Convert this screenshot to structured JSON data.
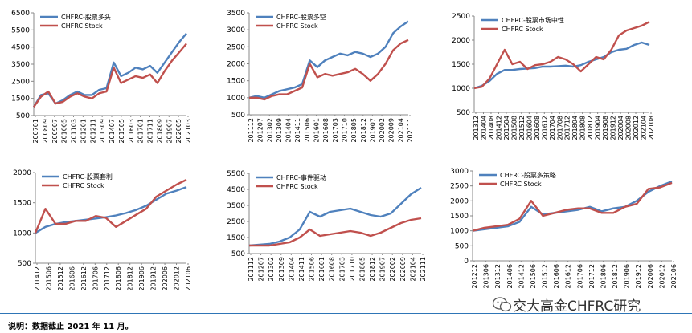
{
  "footnote": "说明：数据截止 2021 年 11 月。",
  "watermark": "交大高金CHFRC研究",
  "colors": {
    "fund": "#4f81bd",
    "stock": "#c0504d"
  },
  "chart_data": [
    {
      "type": "line",
      "ylim": [
        500,
        6500
      ],
      "yticks": [
        500,
        1500,
        2500,
        3500,
        4500,
        5500,
        6500
      ],
      "xticks": [
        "200701",
        "200809",
        "200907",
        "201005",
        "201103",
        "201201",
        "201211",
        "201309",
        "201407",
        "201505",
        "201603",
        "201701",
        "201711",
        "201809",
        "201907",
        "202005",
        "202103"
      ],
      "series": [
        {
          "name": "CHFRC-股票多头",
          "values": [
            1000,
            1700,
            1800,
            1200,
            1400,
            1700,
            1900,
            1700,
            1700,
            2000,
            2100,
            3600,
            2800,
            3000,
            3300,
            3200,
            3400,
            3000,
            3600,
            4200,
            4800,
            5300
          ]
        },
        {
          "name": "CHFRC Stock",
          "values": [
            1000,
            1600,
            1900,
            1200,
            1300,
            1600,
            1800,
            1600,
            1500,
            1800,
            1900,
            3300,
            2400,
            2600,
            2800,
            2700,
            2900,
            2400,
            3100,
            3700,
            4200,
            4700
          ]
        }
      ]
    },
    {
      "type": "line",
      "ylim": [
        500,
        3500
      ],
      "yticks": [
        500,
        1000,
        1500,
        2000,
        2500,
        3000,
        3500
      ],
      "xticks": [
        "201112",
        "201207",
        "201302",
        "201309",
        "201404",
        "201411",
        "201506",
        "201601",
        "201608",
        "201703",
        "201710",
        "201805",
        "201812",
        "201907",
        "202002",
        "202009",
        "202104",
        "202111"
      ],
      "series": [
        {
          "name": "CHFRC-股票多空",
          "values": [
            1000,
            1050,
            1000,
            1100,
            1200,
            1250,
            1300,
            1400,
            2100,
            1900,
            2100,
            2200,
            2300,
            2250,
            2350,
            2300,
            2200,
            2300,
            2500,
            2900,
            3100,
            3250
          ]
        },
        {
          "name": "CHFRC Stock",
          "values": [
            1000,
            1000,
            950,
            1050,
            1100,
            1100,
            1200,
            1300,
            2000,
            1600,
            1700,
            1650,
            1700,
            1750,
            1850,
            1700,
            1500,
            1700,
            2000,
            2400,
            2600,
            2700
          ]
        }
      ]
    },
    {
      "type": "line",
      "ylim": [
        500,
        2500
      ],
      "yticks": [
        500,
        1000,
        1500,
        2000,
        2500
      ],
      "xticks": [
        "201312",
        "201404",
        "201408",
        "201412",
        "201504",
        "201508",
        "201512",
        "201604",
        "201608",
        "201612",
        "201704",
        "201708",
        "201712",
        "201804",
        "201808",
        "201812",
        "201904",
        "201908",
        "201912",
        "202004",
        "202008",
        "202012",
        "202104",
        "202108"
      ],
      "series": [
        {
          "name": "CHFRC-股票市场中性",
          "values": [
            1000,
            1050,
            1150,
            1300,
            1380,
            1380,
            1400,
            1410,
            1420,
            1450,
            1450,
            1460,
            1470,
            1450,
            1480,
            1550,
            1600,
            1650,
            1750,
            1800,
            1820,
            1900,
            1950,
            1900
          ]
        },
        {
          "name": "CHFRC Stock",
          "values": [
            1000,
            1030,
            1200,
            1500,
            1800,
            1500,
            1550,
            1400,
            1480,
            1500,
            1550,
            1650,
            1600,
            1500,
            1350,
            1500,
            1650,
            1600,
            1800,
            2100,
            2200,
            2250,
            2300,
            2380
          ]
        }
      ]
    },
    {
      "type": "line",
      "ylim": [
        500,
        2000
      ],
      "yticks": [
        500,
        1000,
        1500,
        2000
      ],
      "xticks": [
        "201412",
        "201506",
        "201512",
        "201606",
        "201612",
        "201706",
        "201712",
        "201806",
        "201812",
        "201906",
        "201912",
        "202006",
        "202012",
        "202106"
      ],
      "series": [
        {
          "name": "CHFRC-股票套利",
          "values": [
            1000,
            1100,
            1150,
            1180,
            1200,
            1220,
            1240,
            1260,
            1290,
            1330,
            1380,
            1450,
            1550,
            1650,
            1700,
            1760
          ]
        },
        {
          "name": "CHFRC Stock",
          "values": [
            1000,
            1400,
            1150,
            1150,
            1200,
            1200,
            1280,
            1250,
            1100,
            1200,
            1300,
            1400,
            1600,
            1700,
            1800,
            1880
          ]
        }
      ]
    },
    {
      "type": "line",
      "ylim": [
        500,
        5500
      ],
      "yticks": [
        500,
        1500,
        2500,
        3500,
        4500,
        5500
      ],
      "xticks": [
        "201112",
        "201207",
        "201302",
        "201309",
        "201404",
        "201411",
        "201506",
        "201601",
        "201608",
        "201703",
        "201710",
        "201805",
        "201812",
        "201907",
        "202002",
        "202009",
        "202104",
        "202111"
      ],
      "series": [
        {
          "name": "CHFRC-事件驱动",
          "values": [
            1000,
            1050,
            1100,
            1250,
            1500,
            2000,
            3100,
            2800,
            3100,
            3200,
            3300,
            3100,
            2900,
            2800,
            3000,
            3600,
            4200,
            4600
          ]
        },
        {
          "name": "CHFRC Stock",
          "values": [
            1000,
            1000,
            1000,
            1100,
            1200,
            1500,
            2000,
            1600,
            1700,
            1800,
            1900,
            1800,
            1600,
            1800,
            2100,
            2400,
            2600,
            2700
          ]
        }
      ]
    },
    {
      "type": "line",
      "ylim": [
        0,
        3000
      ],
      "yticks": [
        0,
        500,
        1000,
        1500,
        2000,
        2500,
        3000
      ],
      "xticks": [
        "201212",
        "201306",
        "201312",
        "201406",
        "201412",
        "201506",
        "201512",
        "201606",
        "201612",
        "201706",
        "201712",
        "201806",
        "201812",
        "201906",
        "201912",
        "202006",
        "202012",
        "202106"
      ],
      "series": [
        {
          "name": "CHFRC-股票多策略",
          "values": [
            1000,
            1050,
            1100,
            1150,
            1300,
            1800,
            1550,
            1600,
            1650,
            1700,
            1800,
            1650,
            1750,
            1800,
            2000,
            2300,
            2500,
            2650
          ]
        },
        {
          "name": "CHFRC Stock",
          "values": [
            1000,
            1100,
            1150,
            1200,
            1400,
            2000,
            1500,
            1600,
            1700,
            1750,
            1750,
            1600,
            1600,
            1800,
            1900,
            2400,
            2450,
            2600
          ]
        }
      ]
    }
  ]
}
